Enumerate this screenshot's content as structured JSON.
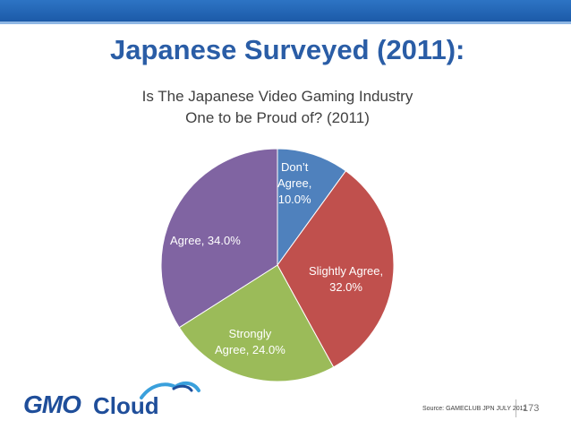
{
  "slide": {
    "title": "Japanese Surveyed (2011):",
    "source": "Source: GAMECLUB JPN JULY 2012",
    "page_number": "173"
  },
  "logo": {
    "gmo": "GMO",
    "cloud": "Cloud",
    "accent_color": "#1f4e9a"
  },
  "chart_data": {
    "type": "pie",
    "title": "Is The Japanese Video Gaming Industry One to be Proud of? (2011)",
    "title_lines": [
      "Is The Japanese Video Gaming Industry",
      "One to be Proud of? (2011)"
    ],
    "slices": [
      {
        "category": "Don’t Agree",
        "value": 10.0,
        "label_lines": [
          "Don’t",
          "Agree,",
          "10.0%"
        ],
        "color": "#4f81bd"
      },
      {
        "category": "Slightly Agree",
        "value": 32.0,
        "label_lines": [
          "Slightly Agree,",
          "32.0%"
        ],
        "color": "#c0504d"
      },
      {
        "category": "Strongly Agree",
        "value": 24.0,
        "label_lines": [
          "Strongly",
          "Agree, 24.0%"
        ],
        "color": "#9bbb59"
      },
      {
        "category": "Agree",
        "value": 34.0,
        "label_lines": [
          "Agree, 34.0%"
        ],
        "color": "#8064a2"
      }
    ],
    "start": "12 o'clock",
    "direction": "clockwise",
    "legend": "none"
  }
}
